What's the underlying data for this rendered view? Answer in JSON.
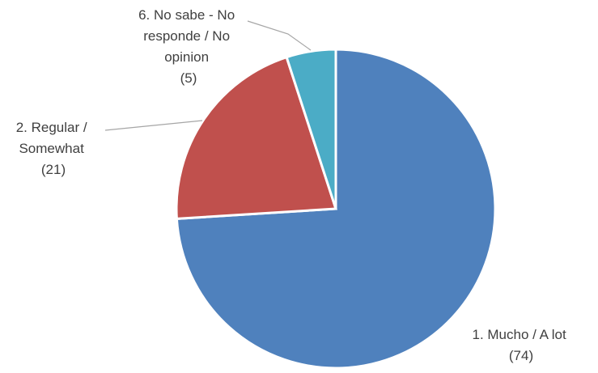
{
  "chart_data": {
    "type": "pie",
    "title": "",
    "start_angle_deg": 0,
    "direction": "clockwise",
    "slices": [
      {
        "label_lines": [
          "1. Mucho / A lot",
          "(74)"
        ],
        "value": 74,
        "color": "#4f81bd"
      },
      {
        "label_lines": [
          "2. Regular /",
          "Somewhat",
          "(21)"
        ],
        "value": 21,
        "color": "#c0504d"
      },
      {
        "label_lines": [
          "6. No sabe - No",
          "responde / No",
          "opinion",
          "(5)"
        ],
        "value": 5,
        "color": "#4bacc6"
      }
    ],
    "legend": "none",
    "leader_lines": true
  }
}
